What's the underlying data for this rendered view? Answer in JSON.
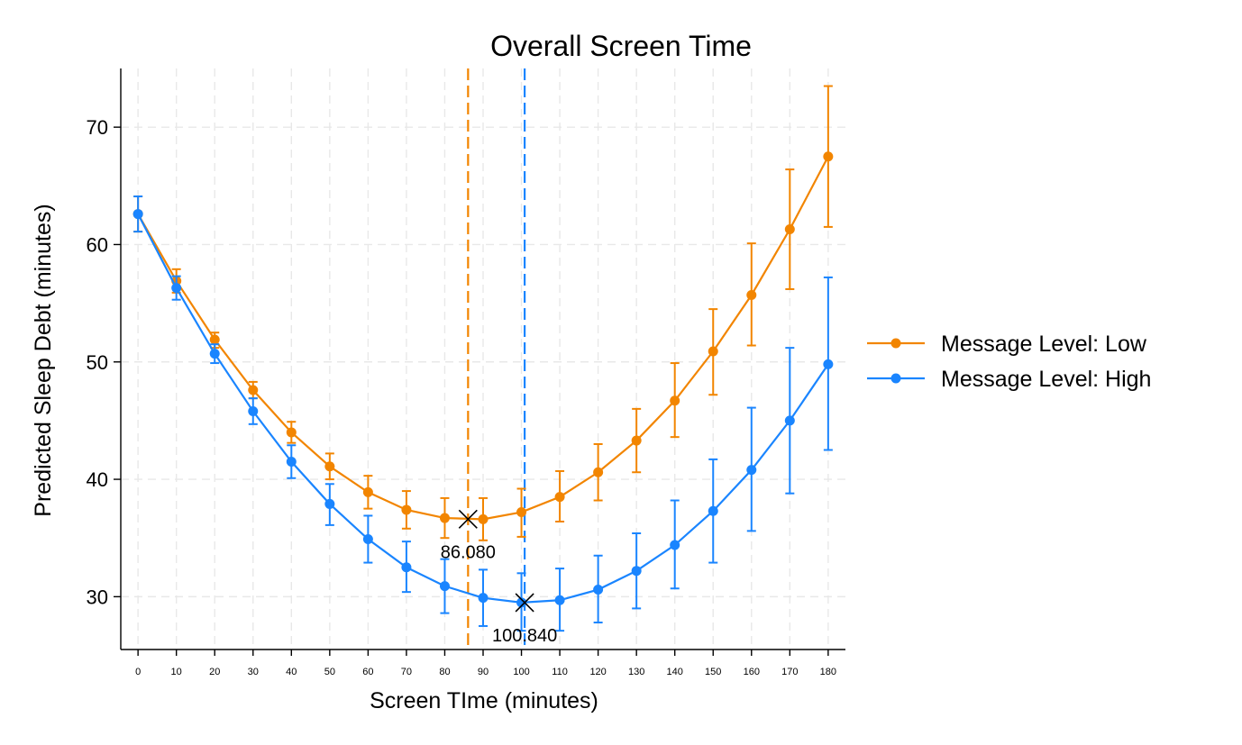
{
  "chart_data": {
    "type": "line",
    "title": "Overall Screen Time",
    "xlabel": "Screen TIme (minutes)",
    "ylabel": "Predicted Sleep Debt (minutes)",
    "x": [
      0,
      10,
      20,
      30,
      40,
      50,
      60,
      70,
      80,
      90,
      100,
      110,
      120,
      130,
      140,
      150,
      160,
      170,
      180
    ],
    "xticks": [
      0,
      10,
      20,
      30,
      40,
      50,
      60,
      70,
      80,
      90,
      100,
      110,
      120,
      130,
      140,
      150,
      160,
      170,
      180
    ],
    "yticks": [
      30,
      40,
      50,
      60,
      70
    ],
    "xlim": [
      -4.5,
      184.5
    ],
    "ylim": [
      25.5,
      75
    ],
    "grid": true,
    "legend_position": "right",
    "series": [
      {
        "name": "Message Level: Low",
        "color": "#f28500",
        "values": [
          62.6,
          56.9,
          51.9,
          47.6,
          44.0,
          41.1,
          38.9,
          37.4,
          36.7,
          36.6,
          37.2,
          38.5,
          40.6,
          43.3,
          46.7,
          50.9,
          55.7,
          61.3,
          67.5
        ],
        "lower": [
          61.1,
          55.9,
          51.2,
          46.9,
          43.1,
          40.0,
          37.5,
          35.8,
          35.0,
          34.8,
          35.1,
          36.4,
          38.2,
          40.6,
          43.6,
          47.2,
          51.4,
          56.2,
          61.5
        ],
        "upper": [
          64.1,
          57.9,
          52.5,
          48.3,
          44.9,
          42.2,
          40.3,
          39.0,
          38.4,
          38.4,
          39.2,
          40.7,
          43.0,
          46.0,
          49.9,
          54.5,
          60.1,
          66.4,
          73.5
        ]
      },
      {
        "name": "Message Level: High",
        "color": "#1a85ff",
        "values": [
          62.6,
          56.3,
          50.7,
          45.8,
          41.5,
          37.9,
          34.9,
          32.5,
          30.9,
          29.9,
          29.5,
          29.7,
          30.6,
          32.2,
          34.4,
          37.3,
          40.8,
          45.0,
          49.8
        ],
        "lower": [
          61.1,
          55.3,
          49.9,
          44.7,
          40.1,
          36.1,
          32.9,
          30.4,
          28.6,
          27.5,
          27.1,
          27.1,
          27.8,
          29.0,
          30.7,
          32.9,
          35.6,
          38.8,
          42.5
        ],
        "upper": [
          64.1,
          57.3,
          51.5,
          46.9,
          42.9,
          39.6,
          36.9,
          34.7,
          33.2,
          32.3,
          32.0,
          32.4,
          33.5,
          35.4,
          38.2,
          41.7,
          46.1,
          51.2,
          57.2
        ]
      }
    ],
    "reference_lines": [
      {
        "x": 86.08,
        "color": "#f28500"
      },
      {
        "x": 100.84,
        "color": "#1a85ff"
      }
    ],
    "annotations": [
      {
        "x": 86.08,
        "y": 36.6,
        "label": "86.080"
      },
      {
        "x": 100.84,
        "y": 29.5,
        "label": "100.840"
      }
    ]
  }
}
